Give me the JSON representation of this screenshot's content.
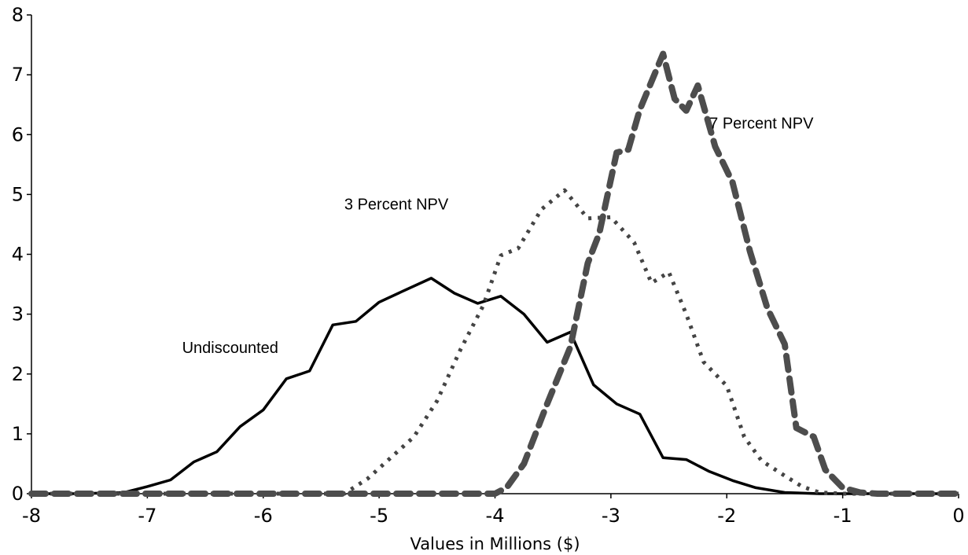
{
  "chart_data": {
    "type": "line",
    "title": "",
    "xlabel": "Values in Millions ($)",
    "ylabel": "",
    "xlim": [
      -8,
      0
    ],
    "ylim": [
      0,
      8
    ],
    "x_ticks": [
      "-8",
      "-7",
      "-6",
      "-5",
      "-4",
      "-3",
      "-2",
      "-1",
      "0"
    ],
    "y_ticks": [
      "0",
      "1",
      "2",
      "3",
      "4",
      "5",
      "6",
      "7",
      "8"
    ],
    "grid": false,
    "series": [
      {
        "name": "Undiscounted",
        "style": "solid",
        "color": "#000000",
        "points": [
          [
            -8.0,
            0
          ],
          [
            -7.6,
            0
          ],
          [
            -7.2,
            0.02
          ],
          [
            -7.0,
            0.12
          ],
          [
            -6.8,
            0.23
          ],
          [
            -6.6,
            0.53
          ],
          [
            -6.4,
            0.7
          ],
          [
            -6.2,
            1.12
          ],
          [
            -6.0,
            1.4
          ],
          [
            -5.8,
            1.92
          ],
          [
            -5.6,
            2.05
          ],
          [
            -5.4,
            2.82
          ],
          [
            -5.2,
            2.88
          ],
          [
            -5.0,
            3.2
          ],
          [
            -4.8,
            3.38
          ],
          [
            -4.55,
            3.6
          ],
          [
            -4.35,
            3.35
          ],
          [
            -4.15,
            3.18
          ],
          [
            -3.95,
            3.3
          ],
          [
            -3.75,
            3.0
          ],
          [
            -3.55,
            2.53
          ],
          [
            -3.35,
            2.7
          ],
          [
            -3.15,
            1.82
          ],
          [
            -2.95,
            1.5
          ],
          [
            -2.75,
            1.33
          ],
          [
            -2.55,
            0.6
          ],
          [
            -2.35,
            0.57
          ],
          [
            -2.15,
            0.37
          ],
          [
            -1.95,
            0.22
          ],
          [
            -1.75,
            0.1
          ],
          [
            -1.5,
            0.02
          ],
          [
            -1.2,
            0
          ],
          [
            0.0,
            0
          ]
        ]
      },
      {
        "name": "3 Percent NPV",
        "style": "dotted",
        "color": "#444444",
        "points": [
          [
            -8.0,
            0
          ],
          [
            -5.3,
            0
          ],
          [
            -5.1,
            0.25
          ],
          [
            -4.9,
            0.6
          ],
          [
            -4.7,
            0.95
          ],
          [
            -4.5,
            1.55
          ],
          [
            -4.3,
            2.4
          ],
          [
            -4.1,
            3.15
          ],
          [
            -3.95,
            3.98
          ],
          [
            -3.8,
            4.1
          ],
          [
            -3.6,
            4.75
          ],
          [
            -3.4,
            5.07
          ],
          [
            -3.2,
            4.6
          ],
          [
            -3.0,
            4.62
          ],
          [
            -2.8,
            4.2
          ],
          [
            -2.65,
            3.52
          ],
          [
            -2.5,
            3.7
          ],
          [
            -2.35,
            3.0
          ],
          [
            -2.2,
            2.2
          ],
          [
            -2.0,
            1.8
          ],
          [
            -1.85,
            0.95
          ],
          [
            -1.7,
            0.55
          ],
          [
            -1.5,
            0.3
          ],
          [
            -1.35,
            0.12
          ],
          [
            -1.2,
            0.02
          ],
          [
            -1.0,
            0
          ],
          [
            0.0,
            0
          ]
        ]
      },
      {
        "name": "7 Percent NPV",
        "style": "dashed",
        "color": "#4d4d4d",
        "points": [
          [
            -8.0,
            0
          ],
          [
            -4.0,
            0
          ],
          [
            -3.9,
            0.1
          ],
          [
            -3.75,
            0.5
          ],
          [
            -3.55,
            1.5
          ],
          [
            -3.35,
            2.45
          ],
          [
            -3.2,
            3.85
          ],
          [
            -3.1,
            4.35
          ],
          [
            -2.95,
            5.7
          ],
          [
            -2.85,
            5.75
          ],
          [
            -2.75,
            6.42
          ],
          [
            -2.55,
            7.35
          ],
          [
            -2.45,
            6.6
          ],
          [
            -2.35,
            6.4
          ],
          [
            -2.25,
            6.82
          ],
          [
            -2.1,
            5.8
          ],
          [
            -1.95,
            5.2
          ],
          [
            -1.8,
            4.05
          ],
          [
            -1.65,
            3.1
          ],
          [
            -1.5,
            2.5
          ],
          [
            -1.4,
            1.1
          ],
          [
            -1.25,
            0.95
          ],
          [
            -1.15,
            0.4
          ],
          [
            -1.0,
            0.1
          ],
          [
            -0.85,
            0.02
          ],
          [
            -0.7,
            0
          ],
          [
            0.0,
            0
          ]
        ]
      }
    ],
    "annotations": [
      {
        "text": "Undiscounted",
        "x": -6.7,
        "y": 2.35
      },
      {
        "text": "3 Percent NPV",
        "x": -5.3,
        "y": 4.75
      },
      {
        "text": "7 Percent NPV",
        "x": -2.15,
        "y": 6.1
      }
    ]
  }
}
